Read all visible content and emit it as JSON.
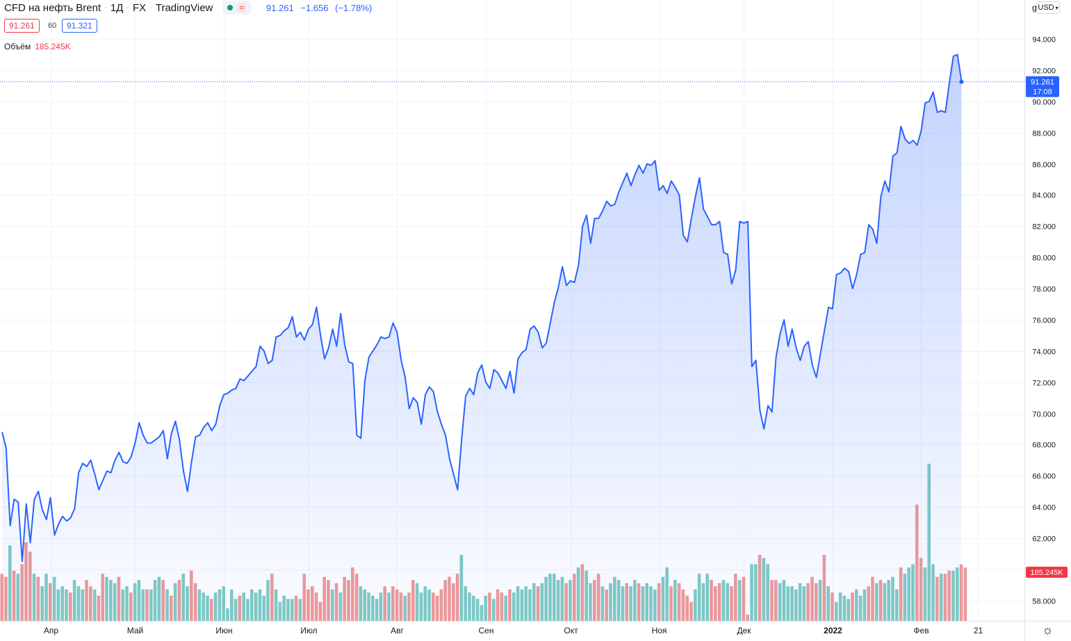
{
  "header": {
    "symbol": "CFD на нефть Brent",
    "interval": "1Д",
    "exchange": "FX",
    "source": "TradingView",
    "last": "91.261",
    "change": "−1.656",
    "change_pct": "(−1.78%)",
    "status_icon": "market-open-dot",
    "wave_icon": "≈"
  },
  "quote": {
    "bid": "91.261",
    "spread": "60",
    "ask": "91.321"
  },
  "volume_legend": {
    "label": "Объём",
    "value": "185.245K"
  },
  "currency": "USD",
  "currency_partial": "g",
  "settings_icon": "☼",
  "colors": {
    "line": "#2962ff",
    "up": "#80cbc4",
    "down": "#ef9a9a",
    "grid": "#f0f3fa",
    "axis_text": "#131722"
  },
  "chart_data": {
    "type": "area",
    "title": "",
    "xlabel": "",
    "ylabel": "",
    "ylim": [
      56.7,
      95.9
    ],
    "y_ticks": [
      "94.000",
      "92.000",
      "90.000",
      "88.000",
      "86.000",
      "84.000",
      "82.000",
      "80.000",
      "78.000",
      "76.000",
      "74.000",
      "72.000",
      "70.000",
      "68.000",
      "66.000",
      "64.000",
      "62.000",
      "60.000",
      "58.000"
    ],
    "x_ticks": [
      {
        "label": "Апр",
        "bar": 12
      },
      {
        "label": "Май",
        "bar": 33
      },
      {
        "label": "Июн",
        "bar": 55
      },
      {
        "label": "Июл",
        "bar": 76
      },
      {
        "label": "Авг",
        "bar": 98
      },
      {
        "label": "Сен",
        "bar": 120
      },
      {
        "label": "Окт",
        "bar": 141
      },
      {
        "label": "Ноя",
        "bar": 163
      },
      {
        "label": "Дек",
        "bar": 184
      },
      {
        "label": "2022",
        "bar": 206
      },
      {
        "label": "Фев",
        "bar": 228
      },
      {
        "label": "21",
        "bar": 242
      }
    ],
    "total_bars": 244,
    "last_price_label": "91.261",
    "last_time_label": "17:08",
    "volume_label": "185.245K",
    "close": [
      68.8,
      67.8,
      62.8,
      64.5,
      64.3,
      60.5,
      64.2,
      61.7,
      64.5,
      65.0,
      63.8,
      63.2,
      64.6,
      62.2,
      62.9,
      63.4,
      63.1,
      63.3,
      63.9,
      66.2,
      66.8,
      66.6,
      67.0,
      66.1,
      65.1,
      65.7,
      66.3,
      66.2,
      67.0,
      67.5,
      66.9,
      66.8,
      67.2,
      68.1,
      69.4,
      68.6,
      68.1,
      68.1,
      68.3,
      68.5,
      68.9,
      67.1,
      68.7,
      69.5,
      68.3,
      66.3,
      65.0,
      66.9,
      68.5,
      68.6,
      69.1,
      69.4,
      68.9,
      69.3,
      70.5,
      71.2,
      71.3,
      71.5,
      71.6,
      72.2,
      72.1,
      72.4,
      72.7,
      73.0,
      74.3,
      74.0,
      73.2,
      73.4,
      74.9,
      75.0,
      75.3,
      75.5,
      76.2,
      74.9,
      75.2,
      74.7,
      75.4,
      75.7,
      76.8,
      75.0,
      73.5,
      74.2,
      75.4,
      74.3,
      76.4,
      74.4,
      73.3,
      73.2,
      68.6,
      68.4,
      72.1,
      73.6,
      74.0,
      74.4,
      74.9,
      74.8,
      74.9,
      75.8,
      75.2,
      73.4,
      72.3,
      70.3,
      71.0,
      70.7,
      69.3,
      71.2,
      71.7,
      71.4,
      70.1,
      69.3,
      68.6,
      67.1,
      66.1,
      65.1,
      68.3,
      71.1,
      71.6,
      71.2,
      72.6,
      73.1,
      72.0,
      71.6,
      72.8,
      72.6,
      72.1,
      71.6,
      72.7,
      71.3,
      73.5,
      73.9,
      74.1,
      75.4,
      75.6,
      75.2,
      74.2,
      74.5,
      75.8,
      77.1,
      78.1,
      79.4,
      78.2,
      78.5,
      78.4,
      79.5,
      82.0,
      82.7,
      80.9,
      82.5,
      82.5,
      83.0,
      83.6,
      83.3,
      83.4,
      84.2,
      84.8,
      85.4,
      84.6,
      85.3,
      85.9,
      85.4,
      86.0,
      85.9,
      86.2,
      84.3,
      84.6,
      84.1,
      84.9,
      84.5,
      84.0,
      81.4,
      81.0,
      82.5,
      83.9,
      85.1,
      83.1,
      82.6,
      82.1,
      82.1,
      82.3,
      80.3,
      80.2,
      78.3,
      79.2,
      82.3,
      82.2,
      82.3,
      73.0,
      73.4,
      70.2,
      69.0,
      70.5,
      70.1,
      73.6,
      75.1,
      76.0,
      74.3,
      75.4,
      74.2,
      73.4,
      74.3,
      74.6,
      73.1,
      72.3,
      73.8,
      75.3,
      76.8,
      76.7,
      78.9,
      79.0,
      79.3,
      79.1,
      78.0,
      78.9,
      80.2,
      80.3,
      82.1,
      81.8,
      80.9,
      83.9,
      84.9,
      84.2,
      86.5,
      86.7,
      88.4,
      87.6,
      87.3,
      87.5,
      87.2,
      88.1,
      89.9,
      90.0,
      90.6,
      89.3,
      89.4,
      89.3,
      91.2,
      92.9,
      93.0,
      91.3
    ],
    "volume_rel": [
      0.3,
      0.28,
      0.48,
      0.32,
      0.3,
      0.36,
      0.5,
      0.44,
      0.3,
      0.28,
      0.22,
      0.3,
      0.24,
      0.28,
      0.2,
      0.22,
      0.2,
      0.18,
      0.26,
      0.22,
      0.2,
      0.26,
      0.22,
      0.2,
      0.16,
      0.3,
      0.28,
      0.26,
      0.24,
      0.28,
      0.2,
      0.22,
      0.18,
      0.24,
      0.26,
      0.2,
      0.2,
      0.2,
      0.26,
      0.28,
      0.26,
      0.2,
      0.16,
      0.24,
      0.26,
      0.3,
      0.22,
      0.32,
      0.24,
      0.2,
      0.18,
      0.16,
      0.14,
      0.18,
      0.2,
      0.22,
      0.08,
      0.2,
      0.14,
      0.16,
      0.18,
      0.14,
      0.2,
      0.18,
      0.2,
      0.16,
      0.26,
      0.3,
      0.2,
      0.12,
      0.16,
      0.14,
      0.14,
      0.16,
      0.14,
      0.3,
      0.2,
      0.22,
      0.18,
      0.12,
      0.28,
      0.26,
      0.2,
      0.24,
      0.18,
      0.28,
      0.26,
      0.34,
      0.3,
      0.22,
      0.2,
      0.18,
      0.16,
      0.14,
      0.18,
      0.22,
      0.18,
      0.22,
      0.2,
      0.18,
      0.16,
      0.18,
      0.26,
      0.24,
      0.18,
      0.22,
      0.2,
      0.18,
      0.16,
      0.2,
      0.26,
      0.28,
      0.24,
      0.3,
      0.42,
      0.22,
      0.18,
      0.16,
      0.14,
      0.1,
      0.16,
      0.18,
      0.14,
      0.2,
      0.18,
      0.16,
      0.2,
      0.18,
      0.22,
      0.2,
      0.22,
      0.2,
      0.24,
      0.22,
      0.24,
      0.28,
      0.3,
      0.3,
      0.26,
      0.28,
      0.24,
      0.26,
      0.3,
      0.34,
      0.36,
      0.32,
      0.24,
      0.26,
      0.3,
      0.22,
      0.2,
      0.24,
      0.28,
      0.26,
      0.22,
      0.24,
      0.22,
      0.26,
      0.24,
      0.22,
      0.24,
      0.22,
      0.2,
      0.24,
      0.28,
      0.34,
      0.22,
      0.26,
      0.24,
      0.2,
      0.16,
      0.12,
      0.2,
      0.3,
      0.24,
      0.3,
      0.26,
      0.22,
      0.24,
      0.26,
      0.24,
      0.22,
      0.3,
      0.26,
      0.28,
      0.04,
      0.36,
      0.36,
      0.42,
      0.4,
      0.36,
      0.26,
      0.26,
      0.24,
      0.26,
      0.22,
      0.22,
      0.2,
      0.24,
      0.22,
      0.24,
      0.28,
      0.24,
      0.26,
      0.42,
      0.22,
      0.18,
      0.12,
      0.18,
      0.16,
      0.14,
      0.18,
      0.2,
      0.16,
      0.2,
      0.22,
      0.28,
      0.24,
      0.26,
      0.24,
      0.26,
      0.28,
      0.2,
      0.34,
      0.3,
      0.34,
      0.36,
      0.74,
      0.4,
      0.34,
      1.0,
      0.36,
      0.28,
      0.3,
      0.3,
      0.32,
      0.32,
      0.34,
      0.36,
      0.34
    ],
    "volume_up": [
      0,
      0,
      1,
      0,
      1,
      0,
      0,
      0,
      1,
      0,
      1,
      1,
      0,
      1,
      1,
      1,
      1,
      0,
      1,
      1,
      1,
      0,
      0,
      1,
      0,
      0,
      1,
      1,
      1,
      0,
      1,
      1,
      0,
      1,
      1,
      1,
      0,
      1,
      1,
      1,
      0,
      1,
      0,
      1,
      0,
      1,
      1,
      0,
      0,
      1,
      1,
      1,
      0,
      1,
      1,
      1,
      1,
      1,
      1,
      0,
      1,
      1,
      1,
      1,
      1,
      1,
      1,
      0,
      1,
      1,
      1,
      1,
      1,
      0,
      1,
      0,
      0,
      0,
      0,
      0,
      0,
      0,
      1,
      0,
      1,
      0,
      0,
      0,
      0,
      1,
      1,
      1,
      1,
      1,
      1,
      0,
      1,
      0,
      0,
      0,
      1,
      0,
      0,
      1,
      1,
      1,
      1,
      0,
      0,
      0,
      0,
      0,
      0,
      0,
      1,
      1,
      1,
      1,
      1,
      1,
      1,
      0,
      1,
      0,
      0,
      1,
      0,
      1,
      1,
      1,
      1,
      1,
      1,
      0,
      1,
      1,
      1,
      1,
      1,
      1,
      0,
      1,
      0,
      1,
      0,
      1,
      1,
      0,
      0,
      1,
      0,
      1,
      1,
      1,
      1,
      0,
      1,
      1,
      0,
      1,
      1,
      1,
      1,
      0,
      1,
      1,
      0,
      1,
      0,
      0,
      0,
      0,
      1,
      1,
      1,
      1,
      0,
      0,
      0,
      1,
      1,
      0,
      0,
      1,
      0,
      0,
      1,
      1,
      0,
      1,
      1,
      0,
      0,
      1,
      1,
      1,
      1,
      1,
      1,
      1,
      0,
      0,
      0,
      1,
      0,
      1,
      0,
      1,
      1,
      1,
      1,
      0,
      1,
      1,
      1,
      0,
      0,
      1,
      0,
      1,
      1,
      1,
      1,
      0,
      1,
      1,
      1,
      0,
      0,
      1,
      1,
      1,
      0,
      1,
      0,
      0,
      1,
      1,
      0,
      0,
      1,
      0,
      1
    ]
  }
}
